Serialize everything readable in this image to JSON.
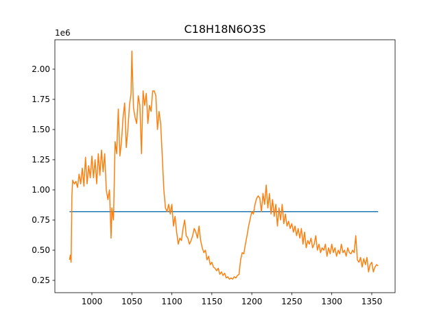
{
  "chart_data": {
    "type": "line",
    "title": "C18H18N6O3S",
    "y_offset_label": "1e6",
    "xlim": [
      953.7,
      1379.2
    ],
    "ylim": [
      0.148,
      2.244
    ],
    "xticks": [
      1000,
      1050,
      1100,
      1150,
      1200,
      1250,
      1300,
      1350
    ],
    "yticks": [
      {
        "value": 0.25,
        "label": "0.25"
      },
      {
        "value": 0.5,
        "label": "0.50"
      },
      {
        "value": 0.75,
        "label": "0.75"
      },
      {
        "value": 1,
        "label": "1.00"
      },
      {
        "value": 1.25,
        "label": "1.25"
      },
      {
        "value": 1.5,
        "label": "1.50"
      },
      {
        "value": 1.75,
        "label": "1.75"
      },
      {
        "value": 2,
        "label": "2.00"
      }
    ],
    "series": [
      {
        "color": "#1f77b4",
        "x": [
          972,
          1358
        ],
        "values": [
          0.82,
          0.82
        ]
      },
      {
        "color": "#ff7f0e",
        "x": [
          972,
          973,
          974,
          975,
          976,
          978,
          980,
          982,
          984,
          986,
          988,
          990,
          992,
          994,
          996,
          998,
          1000,
          1002,
          1004,
          1006,
          1008,
          1010,
          1012,
          1014,
          1016,
          1018,
          1020,
          1022,
          1024,
          1025,
          1027,
          1029,
          1031,
          1033,
          1035,
          1037,
          1039,
          1041,
          1043,
          1045,
          1047,
          1049,
          1050,
          1052,
          1054,
          1056,
          1058,
          1060,
          1062,
          1064,
          1066,
          1068,
          1070,
          1072,
          1074,
          1076,
          1078,
          1080,
          1082,
          1084,
          1086,
          1088,
          1090,
          1092,
          1094,
          1096,
          1098,
          1100,
          1102,
          1104,
          1106,
          1108,
          1110,
          1112,
          1114,
          1116,
          1118,
          1120,
          1122,
          1124,
          1126,
          1128,
          1130,
          1132,
          1134,
          1136,
          1138,
          1140,
          1142,
          1144,
          1146,
          1148,
          1150,
          1152,
          1154,
          1156,
          1158,
          1160,
          1162,
          1164,
          1166,
          1168,
          1170,
          1172,
          1174,
          1176,
          1178,
          1180,
          1182,
          1184,
          1186,
          1188,
          1190,
          1192,
          1194,
          1196,
          1198,
          1200,
          1202,
          1204,
          1206,
          1208,
          1210,
          1212,
          1214,
          1216,
          1218,
          1220,
          1222,
          1224,
          1226,
          1228,
          1230,
          1232,
          1234,
          1236,
          1238,
          1240,
          1242,
          1244,
          1246,
          1248,
          1250,
          1252,
          1254,
          1256,
          1258,
          1260,
          1262,
          1264,
          1266,
          1268,
          1270,
          1272,
          1274,
          1276,
          1278,
          1280,
          1282,
          1284,
          1286,
          1288,
          1290,
          1292,
          1294,
          1296,
          1298,
          1300,
          1302,
          1304,
          1306,
          1308,
          1310,
          1312,
          1314,
          1316,
          1318,
          1320,
          1322,
          1324,
          1326,
          1328,
          1330,
          1332,
          1334,
          1336,
          1338,
          1340,
          1342,
          1344,
          1346,
          1348,
          1350,
          1352,
          1354,
          1356,
          1358
        ],
        "values": [
          0.42,
          0.46,
          0.4,
          0.95,
          1.08,
          1.05,
          1.07,
          1.02,
          1.13,
          1.05,
          1.18,
          1.03,
          1.27,
          1.05,
          1.2,
          1.1,
          1.28,
          1.1,
          1.25,
          1.05,
          1.3,
          1.12,
          1.33,
          1.15,
          1.3,
          1.0,
          0.92,
          1.0,
          0.6,
          0.85,
          0.75,
          1.4,
          1.3,
          1.67,
          1.28,
          1.4,
          1.6,
          1.72,
          1.35,
          1.5,
          1.7,
          1.8,
          2.15,
          1.68,
          1.6,
          1.55,
          1.78,
          1.7,
          1.3,
          1.82,
          1.7,
          1.8,
          1.55,
          1.7,
          1.65,
          1.82,
          1.82,
          1.78,
          1.5,
          1.65,
          1.55,
          1.28,
          1.0,
          0.85,
          0.82,
          0.88,
          0.8,
          0.88,
          0.7,
          0.78,
          0.65,
          0.55,
          0.6,
          0.58,
          0.68,
          0.75,
          0.62,
          0.6,
          0.55,
          0.58,
          0.62,
          0.68,
          0.65,
          0.6,
          0.7,
          0.58,
          0.52,
          0.48,
          0.5,
          0.42,
          0.45,
          0.38,
          0.4,
          0.36,
          0.35,
          0.33,
          0.35,
          0.3,
          0.32,
          0.29,
          0.31,
          0.27,
          0.28,
          0.26,
          0.27,
          0.26,
          0.28,
          0.27,
          0.29,
          0.3,
          0.42,
          0.48,
          0.47,
          0.55,
          0.62,
          0.7,
          0.76,
          0.82,
          0.8,
          0.88,
          0.93,
          0.95,
          0.93,
          0.82,
          0.97,
          0.88,
          1.04,
          0.85,
          0.97,
          0.8,
          0.92,
          0.78,
          0.88,
          0.7,
          0.85,
          0.75,
          0.88,
          0.72,
          0.8,
          0.7,
          0.74,
          0.68,
          0.72,
          0.65,
          0.7,
          0.62,
          0.68,
          0.6,
          0.68,
          0.55,
          0.65,
          0.52,
          0.58,
          0.55,
          0.6,
          0.52,
          0.55,
          0.62,
          0.5,
          0.55,
          0.48,
          0.52,
          0.5,
          0.55,
          0.45,
          0.52,
          0.47,
          0.55,
          0.48,
          0.52,
          0.45,
          0.5,
          0.47,
          0.55,
          0.48,
          0.5,
          0.45,
          0.52,
          0.48,
          0.47,
          0.5,
          0.48,
          0.62,
          0.42,
          0.4,
          0.44,
          0.36,
          0.43,
          0.38,
          0.44,
          0.32,
          0.38,
          0.4,
          0.32,
          0.36,
          0.38,
          0.37
        ]
      }
    ]
  }
}
